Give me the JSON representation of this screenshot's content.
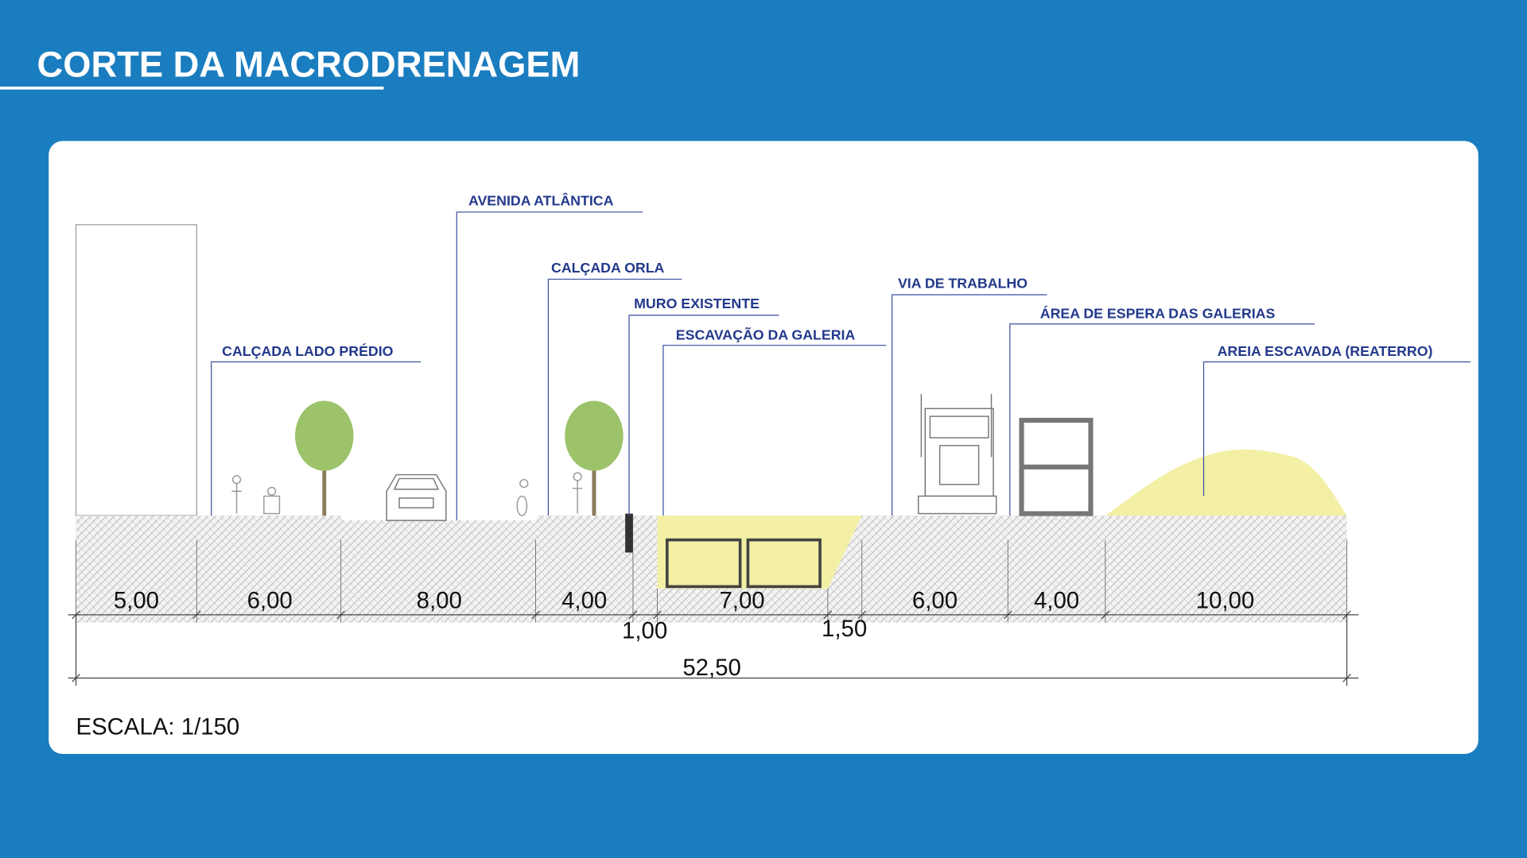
{
  "header": {
    "title": "CORTE DA MACRODRENAGEM"
  },
  "labels": [
    "CALÇADA LADO PRÉDIO",
    "AVENIDA ATLÂNTICA",
    "CALÇADA ORLA",
    "MURO EXISTENTE",
    "ESCAVAÇÃO DA GALERIA",
    "VIA DE TRABALHO",
    "ÁREA DE ESPERA DAS GALERIAS",
    "AREIA ESCAVADA (REATERRO)"
  ],
  "dimensions": [
    "5,00",
    "6,00",
    "8,00",
    "4,00",
    "1,00",
    "7,00",
    "1,50",
    "6,00",
    "4,00",
    "10,00"
  ],
  "total": "52,50",
  "scale": "ESCALA: 1/150"
}
